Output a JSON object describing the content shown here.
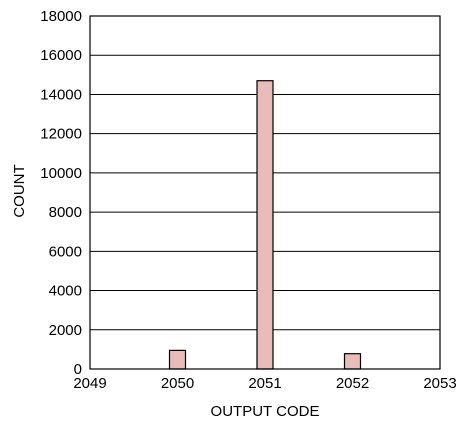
{
  "chart_data": {
    "type": "bar",
    "title": "",
    "xlabel": "OUTPUT CODE",
    "ylabel": "COUNT",
    "x_ticks": [
      2049,
      2050,
      2051,
      2052,
      2053
    ],
    "y_ticks": [
      0,
      2000,
      4000,
      6000,
      8000,
      10000,
      12000,
      14000,
      16000,
      18000
    ],
    "xlim": [
      2049,
      2053
    ],
    "ylim": [
      0,
      18000
    ],
    "grid": "horizontal",
    "categories": [
      2050,
      2051,
      2052
    ],
    "values": [
      950,
      14700,
      780
    ],
    "colors": {
      "bar_fill": "#e8bcb9",
      "bar_stroke": "#000000",
      "grid": "#000000",
      "axis": "#000000"
    }
  }
}
